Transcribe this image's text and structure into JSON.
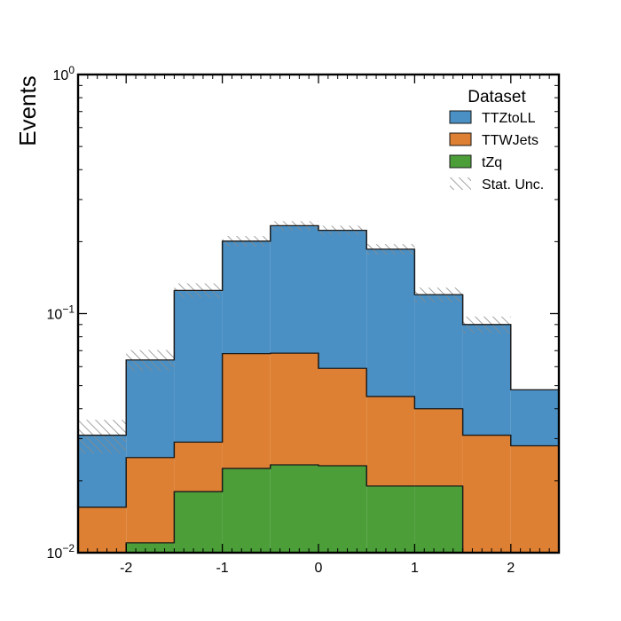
{
  "chart_data": {
    "type": "stacked-step-histogram",
    "ylabel": "Events",
    "yscale": "log",
    "ylim": [
      0.01,
      1
    ],
    "xlim": [
      -2.5,
      2.5
    ],
    "bin_edges": [
      -2.5,
      -2.0,
      -1.5,
      -1.0,
      -0.5,
      0.0,
      0.5,
      1.0,
      1.5,
      2.0,
      2.5
    ],
    "x_ticks": [
      -2,
      -1,
      0,
      1,
      2
    ],
    "x_tick_labels": [
      "-2",
      "-1",
      "0",
      "1",
      "2"
    ],
    "y_major_ticks": [
      {
        "value": 0.01,
        "base": "10",
        "exp": "−2"
      },
      {
        "value": 0.1,
        "base": "10",
        "exp": "−1"
      },
      {
        "value": 1,
        "base": "10",
        "exp": "0"
      }
    ],
    "series": [
      {
        "name": "tZq",
        "color": "#4c9e39",
        "values": [
          0.0,
          0.011,
          0.018,
          0.0225,
          0.0233,
          0.0231,
          0.019,
          0.019,
          0.0,
          0.0
        ]
      },
      {
        "name": "TTWJets",
        "color": "#dd8033",
        "values": [
          0.0155,
          0.014,
          0.011,
          0.0455,
          0.045,
          0.0359,
          0.026,
          0.021,
          0.031,
          0.028
        ]
      },
      {
        "name": "TTZtoLL",
        "color": "#4a90c4",
        "values": [
          0.0155,
          0.039,
          0.096,
          0.133,
          0.165,
          0.164,
          0.141,
          0.08,
          0.059,
          0.02
        ]
      }
    ],
    "totals": [
      0.031,
      0.064,
      0.125,
      0.201,
      0.233,
      0.223,
      0.186,
      0.12,
      0.09,
      0.048
    ],
    "stat_unc_rel": [
      0.16,
      0.1,
      0.07,
      0.05,
      0.045,
      0.045,
      0.05,
      0.07,
      0.08,
      0.0
    ],
    "legend": {
      "title": "Dataset",
      "placement": "top-right",
      "entries": [
        {
          "label": "TTZtoLL",
          "color": "#4a90c4",
          "kind": "fill"
        },
        {
          "label": "TTWJets",
          "color": "#dd8033",
          "kind": "fill"
        },
        {
          "label": "tZq",
          "color": "#4c9e39",
          "kind": "fill"
        },
        {
          "label": "Stat. Unc.",
          "color": "#888888",
          "kind": "hatch"
        }
      ]
    }
  }
}
